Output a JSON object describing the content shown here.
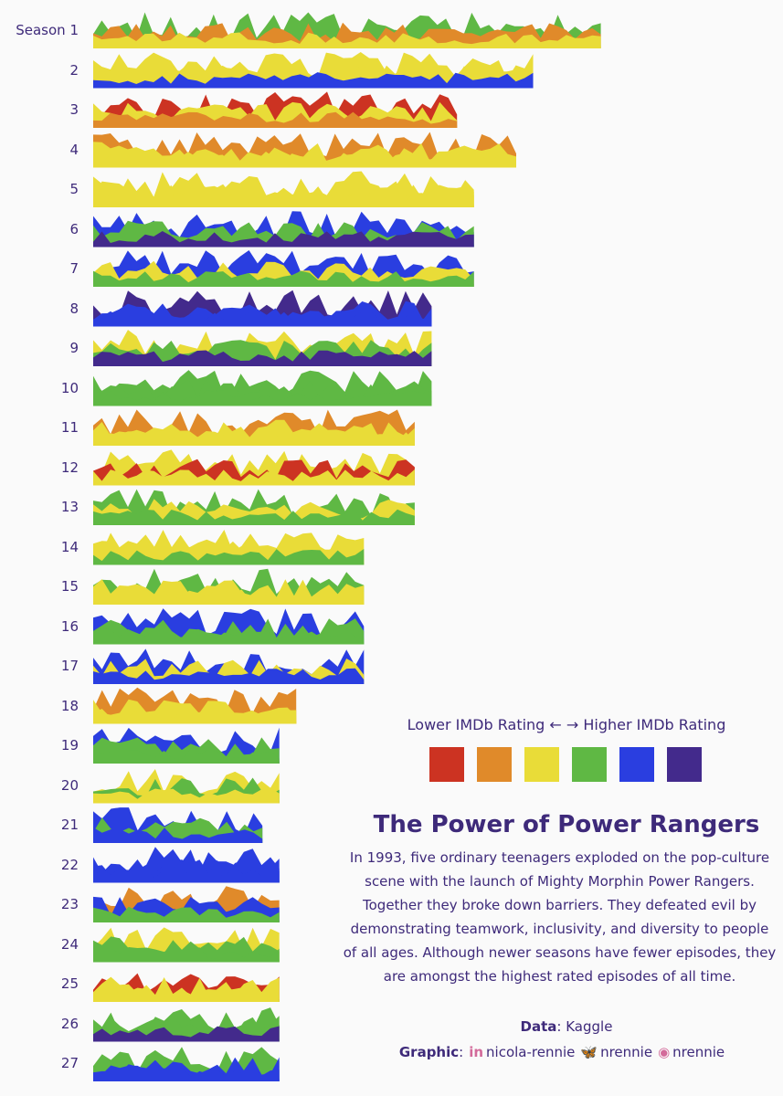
{
  "chart_data": {
    "type": "area",
    "title": "The Power of Power Rangers",
    "description": "In 1993, five ordinary teenagers exploded on the pop-culture scene with the launch of Mighty Morphin Power Rangers. Together they broke down barriers. They defeated evil by demonstrating teamwork, inclusivity, and diversity to people of all ages. Although newer seasons have fewer episodes, they are amongst the highest rated episodes of all time.",
    "legend_title": "Lower IMDb Rating ←   → Higher IMDb Rating",
    "legend_colors": [
      "#cc3322",
      "#e08a2a",
      "#e9dc38",
      "#5fb844",
      "#2a3ee0",
      "#432a8c"
    ],
    "data_label": "Data",
    "data_source": "Kaggle",
    "graphic_label": "Graphic",
    "credits": [
      {
        "icon": "linkedin-icon",
        "glyph": "in",
        "handle": "nicola-rennie"
      },
      {
        "icon": "bluesky-icon",
        "glyph": "🦋",
        "handle": "nrennie"
      },
      {
        "icon": "github-icon",
        "glyph": "◉",
        "handle": "nrennie"
      }
    ],
    "seasons": [
      {
        "label": "Season 1",
        "episodes": 60
      },
      {
        "label": "2",
        "episodes": 52
      },
      {
        "label": "3",
        "episodes": 43
      },
      {
        "label": "4",
        "episodes": 50
      },
      {
        "label": "5",
        "episodes": 45
      },
      {
        "label": "6",
        "episodes": 45
      },
      {
        "label": "7",
        "episodes": 45
      },
      {
        "label": "8",
        "episodes": 40
      },
      {
        "label": "9",
        "episodes": 40
      },
      {
        "label": "10",
        "episodes": 40
      },
      {
        "label": "11",
        "episodes": 38
      },
      {
        "label": "12",
        "episodes": 38
      },
      {
        "label": "13",
        "episodes": 38
      },
      {
        "label": "14",
        "episodes": 32
      },
      {
        "label": "15",
        "episodes": 32
      },
      {
        "label": "16",
        "episodes": 32
      },
      {
        "label": "17",
        "episodes": 32
      },
      {
        "label": "18",
        "episodes": 24
      },
      {
        "label": "19",
        "episodes": 22
      },
      {
        "label": "20",
        "episodes": 22
      },
      {
        "label": "21",
        "episodes": 20
      },
      {
        "label": "22",
        "episodes": 22
      },
      {
        "label": "23",
        "episodes": 22
      },
      {
        "label": "24",
        "episodes": 22
      },
      {
        "label": "25",
        "episodes": 22
      },
      {
        "label": "26",
        "episodes": 22
      },
      {
        "label": "27",
        "episodes": 22
      }
    ]
  }
}
